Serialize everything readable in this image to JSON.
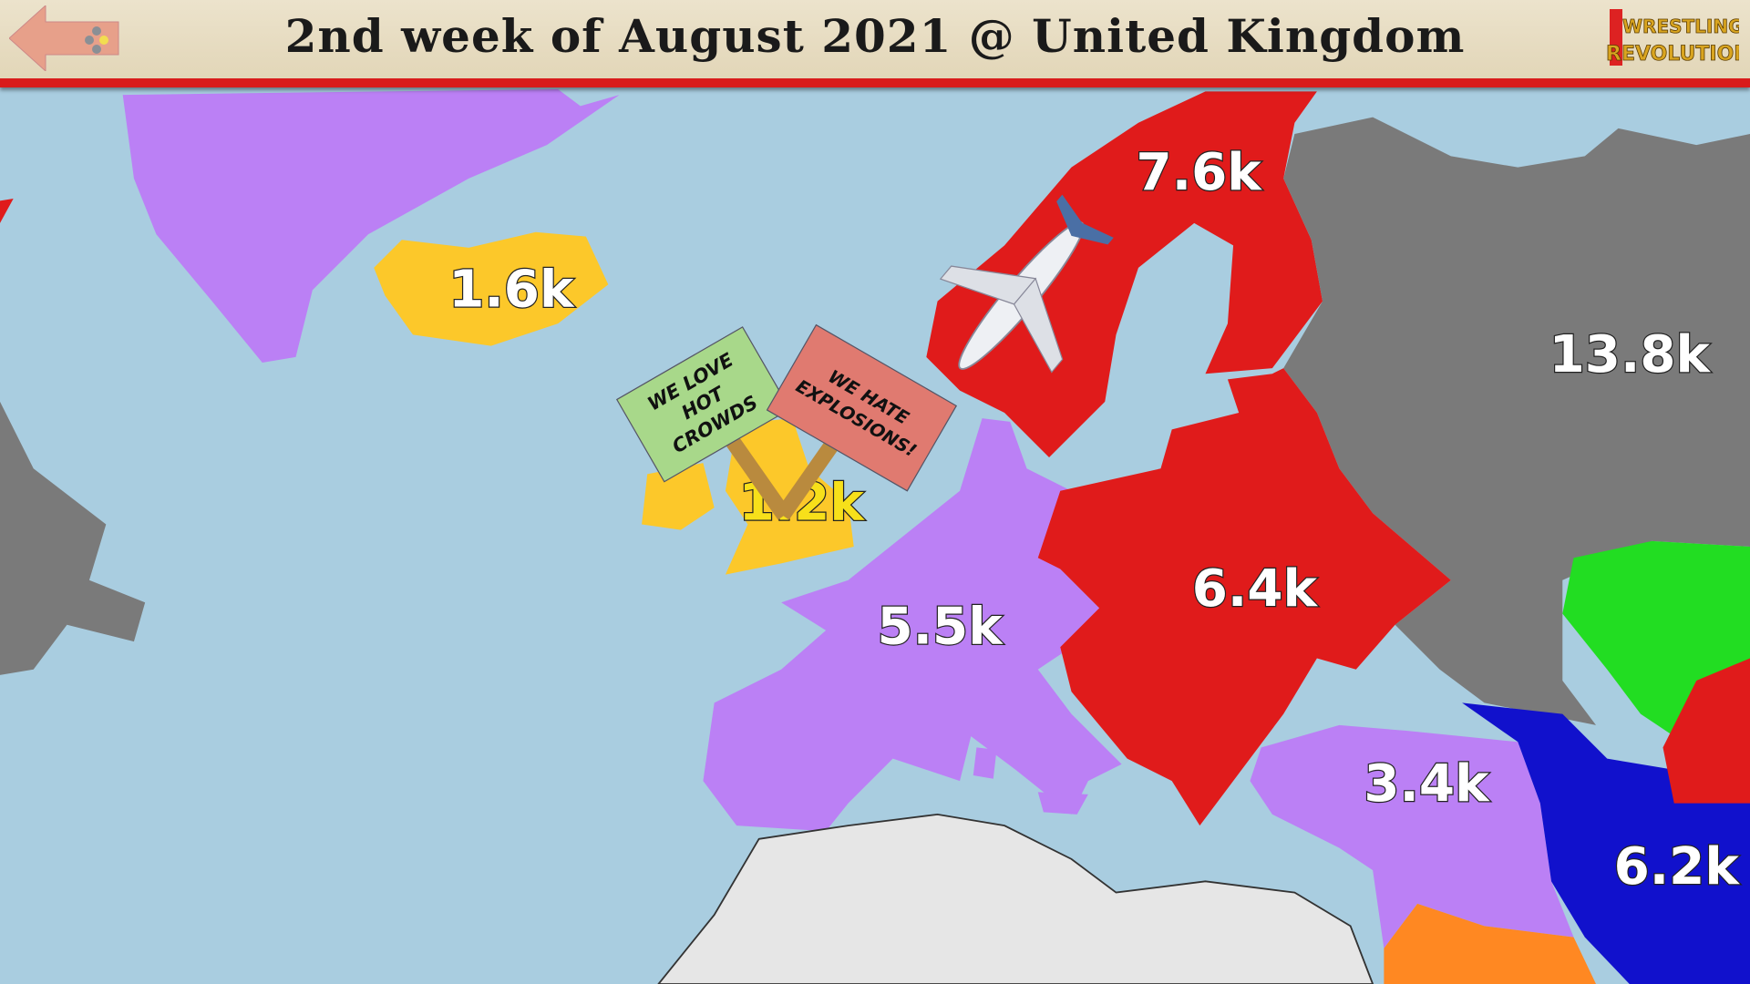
{
  "header": {
    "title": "2nd week of August 2021 @ United Kingdom",
    "back_icon": "back-arrow-icon",
    "logo_text": "Wrestling Revolution"
  },
  "colors": {
    "sea": "#a9cde0",
    "purple": "#bb80f5",
    "yellow": "#fcc82a",
    "red": "#e01b1b",
    "gray": "#7a7a7a",
    "green": "#22dd22",
    "blue": "#1111cc",
    "orange": "#ff8822",
    "light": "#e6e6e6"
  },
  "regions": [
    {
      "name": "Iceland",
      "value": "1.6k",
      "color": "yellow"
    },
    {
      "name": "United Kingdom",
      "value": "1.2k",
      "color": "yellow"
    },
    {
      "name": "Scandinavia",
      "value": "7.6k",
      "color": "red"
    },
    {
      "name": "Russia",
      "value": "13.8k",
      "color": "gray"
    },
    {
      "name": "Western Europe",
      "value": "5.5k",
      "color": "purple"
    },
    {
      "name": "Eastern Europe",
      "value": "6.4k",
      "color": "red"
    },
    {
      "name": "Turkey",
      "value": "3.4k",
      "color": "purple"
    },
    {
      "name": "Iran",
      "value": "6.2k",
      "color": "blue"
    }
  ],
  "signs": [
    {
      "text": "WE LOVE HOT CROWDS"
    },
    {
      "text": "WE HATE EXPLOSIONS!"
    }
  ]
}
